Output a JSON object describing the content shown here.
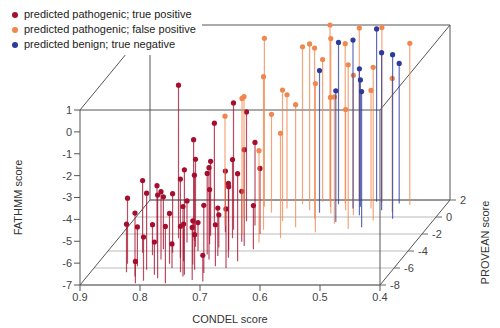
{
  "chart_data": {
    "type": "scatter3d",
    "xlabel": "CONDEL score",
    "ylabel": "PROVEAN score",
    "zlabel": "FATHMM score",
    "xlim": [
      0.9,
      0.4
    ],
    "xticks": [
      0.9,
      0.8,
      0.7,
      0.6,
      0.5,
      0.4
    ],
    "ylim": [
      -8,
      2
    ],
    "yticks": [
      -8,
      -6,
      -4,
      -2,
      0,
      2
    ],
    "zlim": [
      -7,
      1
    ],
    "zticks": [
      1,
      0,
      -1,
      -2,
      -3,
      -4,
      -5,
      -6,
      -7
    ],
    "grid": true,
    "legend": "top left",
    "series": [
      {
        "name": "predicted pathogenic; true positive",
        "color": "#a50f2d",
        "x": [
          0.8,
          0.84,
          0.83,
          0.82,
          0.82,
          0.81,
          0.81,
          0.8,
          0.8,
          0.79,
          0.79,
          0.78,
          0.78,
          0.78,
          0.77,
          0.77,
          0.77,
          0.76,
          0.76,
          0.76,
          0.75,
          0.75,
          0.75,
          0.74,
          0.74,
          0.74,
          0.73,
          0.73,
          0.73,
          0.72,
          0.72,
          0.72,
          0.72,
          0.71,
          0.71,
          0.71,
          0.7,
          0.7,
          0.7,
          0.69,
          0.69,
          0.68,
          0.68,
          0.67,
          0.67,
          0.83,
          0.84,
          0.79,
          0.76,
          0.74,
          0.81,
          0.71,
          0.69,
          0.66,
          0.85
        ],
        "y": [
          -2.5,
          -6.5,
          -5.8,
          -7.0,
          -4.5,
          -6.2,
          -3.8,
          -7.5,
          -5.0,
          -6.8,
          -4.2,
          -3.0,
          -7.2,
          -5.5,
          -6.0,
          -4.8,
          -2.8,
          -7.8,
          -5.2,
          -3.5,
          -6.5,
          -4.0,
          -2.2,
          -7.0,
          -5.6,
          -3.2,
          -6.2,
          -4.4,
          -1.8,
          -7.4,
          -5.0,
          -3.6,
          -1.5,
          -6.6,
          -4.6,
          -2.5,
          -5.8,
          -3.9,
          -7.6,
          -4.8,
          -2.9,
          -6.0,
          -3.4,
          -5.2,
          -2.0,
          -3.0,
          -4.2,
          -1.2,
          -0.8,
          -6.8,
          -7.8,
          -0.5,
          -1.0,
          -3.8,
          -5.5
        ],
        "z": [
          0.0,
          -4.8,
          -5.2,
          -4.1,
          -5.6,
          -3.5,
          -4.6,
          -5.0,
          -3.9,
          -5.5,
          -4.3,
          -5.1,
          -3.2,
          -4.7,
          -5.9,
          -3.4,
          -4.0,
          -4.4,
          -5.3,
          -3.0,
          -4.9,
          -5.7,
          -3.6,
          -3.8,
          -5.0,
          -4.5,
          -5.4,
          -3.3,
          -4.2,
          -4.6,
          -2.8,
          -5.5,
          -1.2,
          -3.9,
          -4.8,
          -3.4,
          -5.1,
          -4.1,
          -5.8,
          -3.6,
          -4.7,
          -4.3,
          -2.6,
          -3.0,
          -4.0,
          -4.4,
          -3.7,
          -3.0,
          -2.4,
          -2.2,
          -6.0,
          -2.0,
          -3.2,
          -5.0,
          -4.0
        ]
      },
      {
        "name": "predicted pathogenic; false positive",
        "color": "#f0874f",
        "x": [
          0.74,
          0.72,
          0.7,
          0.68,
          0.67,
          0.66,
          0.65,
          0.64,
          0.63,
          0.62,
          0.62,
          0.61,
          0.6,
          0.59,
          0.58,
          0.58,
          0.57,
          0.56,
          0.55,
          0.54,
          0.53,
          0.52,
          0.51,
          0.5,
          0.48,
          0.46,
          0.7,
          0.66,
          0.6,
          0.56
        ],
        "y": [
          -1.0,
          0.0,
          -2.0,
          0.5,
          -1.5,
          1.0,
          -0.5,
          1.5,
          -2.5,
          0.8,
          -1.2,
          1.8,
          -0.2,
          1.2,
          -1.8,
          0.4,
          1.6,
          -0.8,
          1.9,
          0.2,
          -1.4,
          1.0,
          1.7,
          -0.4,
          0.6,
          1.4,
          1.2,
          -3.0,
          2.0,
          0.8
        ],
        "z": [
          -2.0,
          -1.5,
          -0.8,
          -2.5,
          0.0,
          -1.8,
          -1.0,
          0.2,
          -2.2,
          0.6,
          -1.4,
          -0.5,
          0.8,
          -2.0,
          -0.2,
          1.0,
          0.3,
          -1.2,
          0.9,
          -0.6,
          0.5,
          -1.6,
          1.0,
          0.0,
          -0.9,
          0.4,
          0.7,
          -2.8,
          1.0,
          -2.4
        ]
      },
      {
        "name": "predicted benign; true negative",
        "color": "#2c3b9c",
        "x": [
          0.6,
          0.58,
          0.56,
          0.55,
          0.53,
          0.52,
          0.51,
          0.5,
          0.48,
          0.47,
          0.54
        ],
        "y": [
          0.5,
          1.5,
          -0.6,
          1.0,
          0.2,
          1.8,
          -1.2,
          0.8,
          1.6,
          -0.2,
          1.2
        ],
        "z": [
          -0.5,
          0.4,
          -1.0,
          0.7,
          -0.3,
          0.9,
          -0.8,
          0.2,
          -0.6,
          0.5,
          -1.2
        ]
      }
    ]
  }
}
